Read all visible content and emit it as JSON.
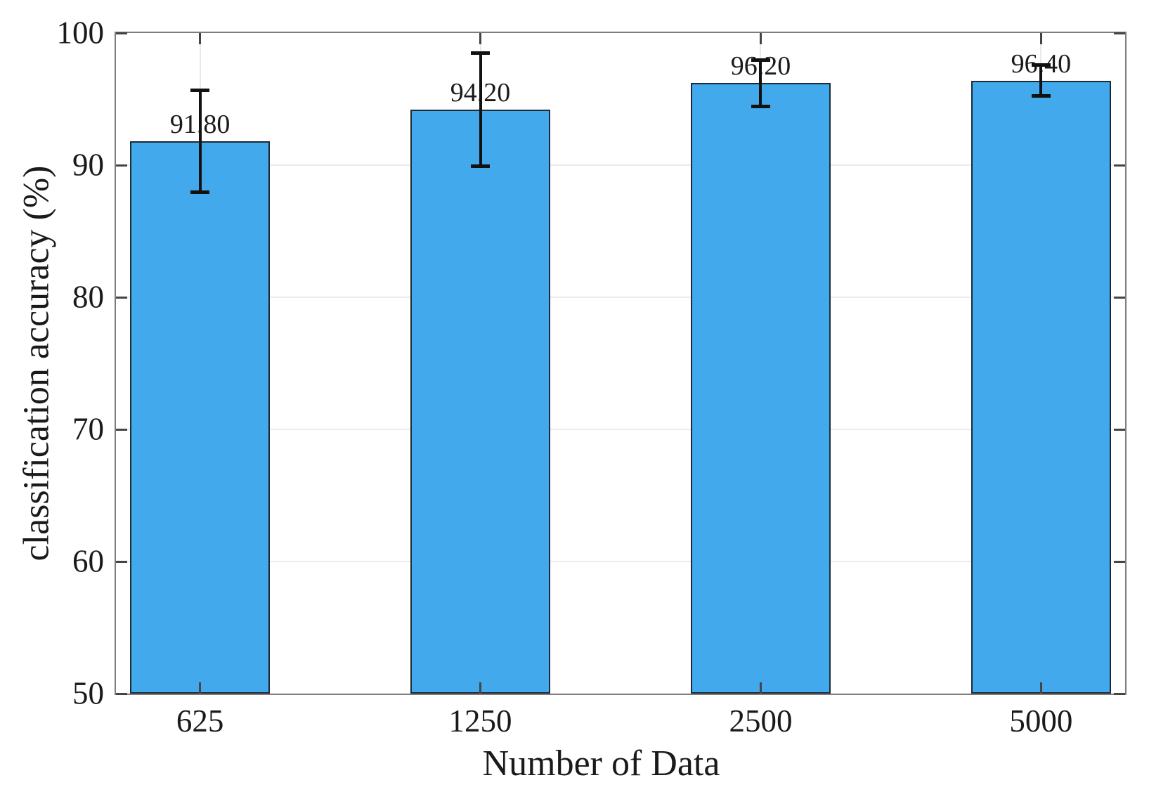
{
  "chart_data": {
    "type": "bar",
    "title": "",
    "xlabel": "Number of Data",
    "ylabel": "classification accuracy (%)",
    "categories": [
      "625",
      "1250",
      "2500",
      "5000"
    ],
    "values": [
      91.8,
      94.2,
      96.2,
      96.4
    ],
    "value_labels": [
      "91.80",
      "94.20",
      "96.20",
      "96.40"
    ],
    "errors": [
      4.0,
      4.4,
      1.9,
      1.3
    ],
    "y_ticks": [
      50,
      60,
      70,
      80,
      90,
      100
    ],
    "ylim": [
      50,
      100
    ],
    "grid": true,
    "legend": "none",
    "colors": {
      "bar_fill": "#41a9ec",
      "bar_edge": "#1c2b36",
      "error_bar": "#111111",
      "grid": "#ececec",
      "axis_box": "#7d7d7d",
      "tick": "#454545",
      "text": "#1a1a1a"
    }
  }
}
